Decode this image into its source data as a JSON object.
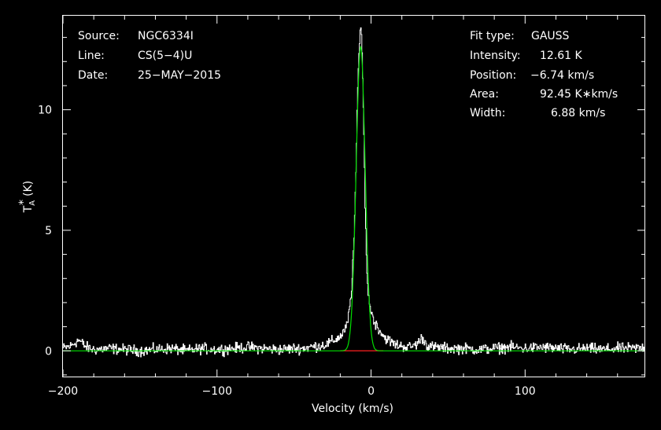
{
  "header": {
    "source_label": "Source:",
    "source_value": "NGC6334I",
    "line_label": "Line:",
    "line_value": "CS(5−4)U",
    "date_label": "Date:",
    "date_value": "25−MAY−2015"
  },
  "fit": {
    "type_label": "Fit type:",
    "type_value": "GAUSS",
    "intensity_label": "Intensity:",
    "intensity_value": "12.61 K",
    "position_label": "Position:",
    "position_value": "−6.74 km/s",
    "area_label": "Area:",
    "area_value": "92.45 K∗km/s",
    "width_label": "Width:",
    "width_value": "6.88 km/s"
  },
  "chart_data": {
    "type": "line",
    "xlabel": "Velocity (km/s)",
    "ylabel_main": "T",
    "ylabel_sub": "A",
    "ylabel_sup": "*",
    "ylabel_unit": "(K)",
    "xlim": [
      -200,
      178
    ],
    "ylim": [
      -1.1,
      13.9
    ],
    "x_ticks": [
      -200,
      -100,
      0,
      100
    ],
    "x_tick_labels": [
      "−200",
      "−100",
      "0",
      "100"
    ],
    "y_ticks": [
      0,
      5,
      10
    ],
    "y_tick_labels": [
      "0",
      "5",
      "10"
    ],
    "grid": false,
    "series": [
      {
        "role": "spectrum",
        "color": "#ffffff",
        "x": [
          -200,
          -195,
          -190,
          -185,
          -180,
          -170,
          -160,
          -150,
          -140,
          -130,
          -120,
          -110,
          -100,
          -90,
          -80,
          -70,
          -60,
          -50,
          -45,
          -40,
          -35,
          -30,
          -25,
          -20,
          -16,
          -13,
          -11,
          -10,
          -9,
          -8,
          -7,
          -6.5,
          -6,
          -5,
          -4,
          -3,
          -2,
          0,
          2,
          5,
          8,
          12,
          16,
          20,
          25,
          30,
          33,
          36,
          40,
          50,
          60,
          70,
          80,
          90,
          100,
          110,
          120,
          130,
          140,
          150,
          160,
          170,
          178
        ],
        "y": [
          0.1,
          0.2,
          0.45,
          0.15,
          0.05,
          0.1,
          0.05,
          0.0,
          0.05,
          0.1,
          0.0,
          0.1,
          0.05,
          0.1,
          0.15,
          0.1,
          0.05,
          0.1,
          0.1,
          0.15,
          0.2,
          0.25,
          0.4,
          0.6,
          1.0,
          2.2,
          5.0,
          7.6,
          10.5,
          12.4,
          13.2,
          13.3,
          12.4,
          9.5,
          6.2,
          3.5,
          2.3,
          1.6,
          1.2,
          0.9,
          0.6,
          0.4,
          0.25,
          0.2,
          0.15,
          0.3,
          0.55,
          0.25,
          0.15,
          0.1,
          0.1,
          0.05,
          0.1,
          0.15,
          0.1,
          0.15,
          0.1,
          0.05,
          0.1,
          0.05,
          0.1,
          0.1,
          0.15
        ]
      },
      {
        "role": "gaussian fit",
        "color": "#00e000",
        "amplitude": 12.61,
        "center": -6.74,
        "fwhm": 6.88
      },
      {
        "role": "fit window baseline",
        "color": "#ff2020",
        "x": [
          -20,
          8
        ],
        "y": [
          0,
          0
        ]
      }
    ]
  }
}
